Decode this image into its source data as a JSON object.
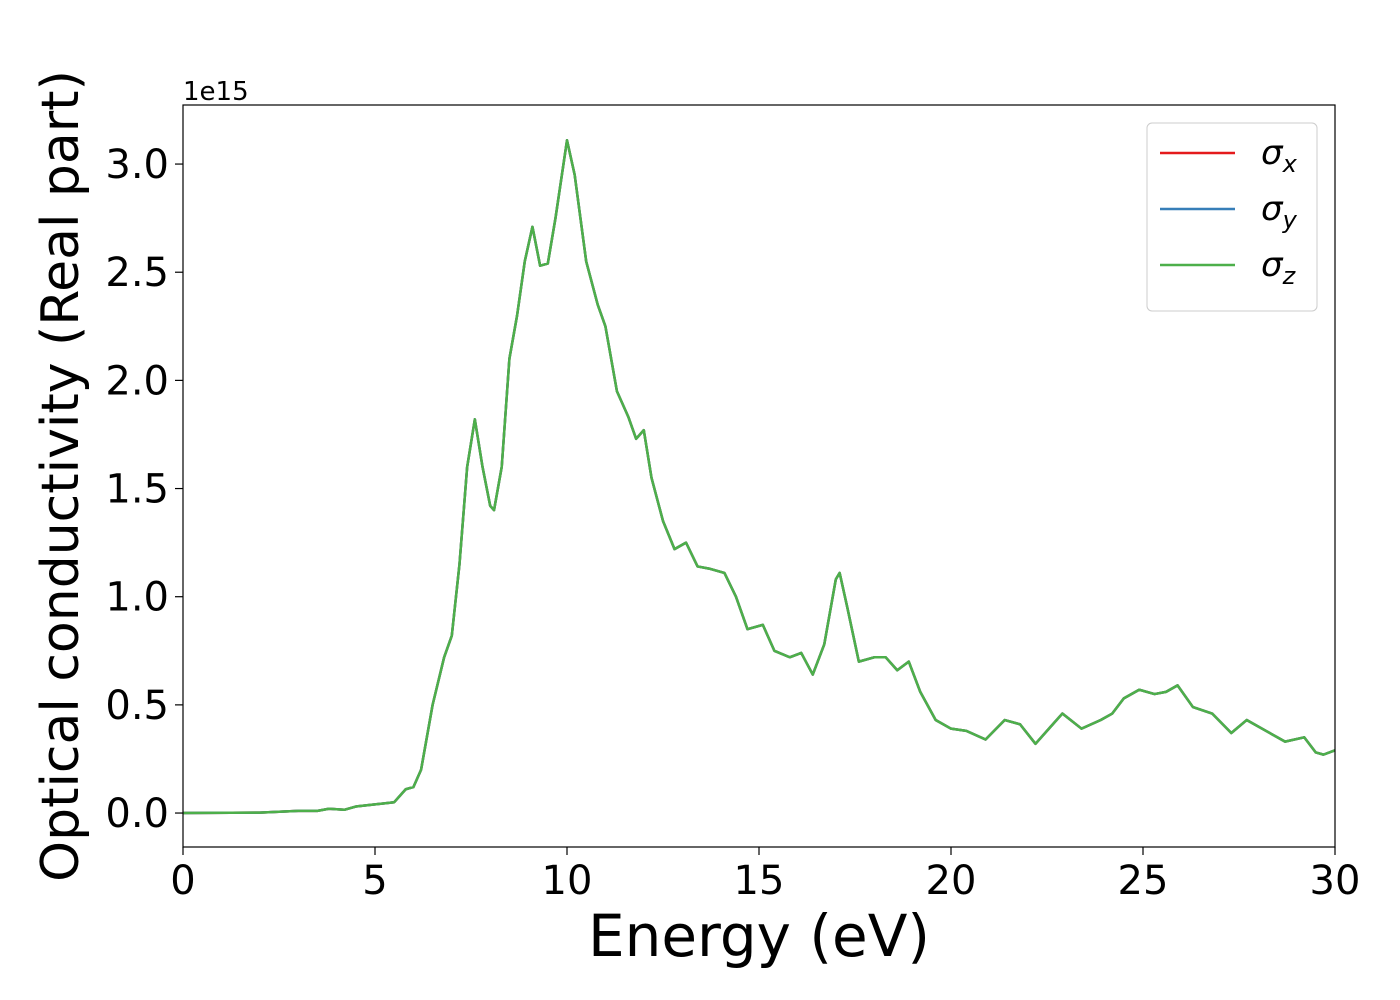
{
  "chart_data": {
    "type": "line",
    "xlabel": "Energy (eV)",
    "ylabel": "Optical conductivity (Real part)",
    "y_offset_label": "1e15",
    "legend": "upper right",
    "xlim": [
      0,
      30
    ],
    "xticks": [
      0,
      5,
      10,
      15,
      20,
      25,
      30
    ],
    "ylim": [
      -0.157,
      3.273
    ],
    "yticks": [
      {
        "value": 0,
        "label": "0.0"
      },
      {
        "value": 0.5,
        "label": "0.5"
      },
      {
        "value": 1,
        "label": "1.0"
      },
      {
        "value": 1.5,
        "label": "1.5"
      },
      {
        "value": 2,
        "label": "2.0"
      },
      {
        "value": 2.5,
        "label": "2.5"
      },
      {
        "value": 3,
        "label": "3.0"
      }
    ],
    "x": [
      0,
      2,
      3,
      3.5,
      3.8,
      4.2,
      4.5,
      5,
      5.5,
      5.8,
      6,
      6.2,
      6.5,
      6.8,
      7,
      7.2,
      7.4,
      7.6,
      7.8,
      8,
      8.1,
      8.3,
      8.5,
      8.7,
      8.9,
      9.1,
      9.3,
      9.5,
      9.7,
      10,
      10.2,
      10.5,
      10.8,
      11,
      11.3,
      11.6,
      11.8,
      12,
      12.2,
      12.5,
      12.8,
      13.1,
      13.4,
      13.7,
      14.1,
      14.4,
      14.7,
      15.1,
      15.4,
      15.8,
      16.1,
      16.4,
      16.7,
      17,
      17.1,
      17.3,
      17.6,
      18,
      18.3,
      18.6,
      18.9,
      19.2,
      19.6,
      20,
      20.4,
      20.9,
      21.4,
      21.8,
      22.2,
      22.6,
      22.9,
      23.4,
      23.9,
      24.2,
      24.5,
      24.9,
      25.3,
      25.6,
      25.9,
      26.3,
      26.8,
      27.3,
      27.7,
      28.2,
      28.7,
      29.2,
      29.5,
      29.7,
      30
    ],
    "series": [
      {
        "name": "σx",
        "color": "#e41a1c",
        "values": [
          0,
          0.002,
          0.01,
          0.01,
          0.02,
          0.015,
          0.03,
          0.04,
          0.05,
          0.11,
          0.12,
          0.2,
          0.5,
          0.72,
          0.82,
          1.15,
          1.6,
          1.82,
          1.6,
          1.42,
          1.4,
          1.6,
          2.1,
          2.3,
          2.55,
          2.71,
          2.53,
          2.54,
          2.75,
          3.11,
          2.95,
          2.55,
          2.35,
          2.25,
          1.95,
          1.83,
          1.73,
          1.77,
          1.55,
          1.35,
          1.22,
          1.25,
          1.14,
          1.13,
          1.11,
          1,
          0.85,
          0.87,
          0.75,
          0.72,
          0.74,
          0.64,
          0.78,
          1.08,
          1.11,
          0.95,
          0.7,
          0.72,
          0.72,
          0.66,
          0.7,
          0.56,
          0.43,
          0.39,
          0.38,
          0.34,
          0.43,
          0.41,
          0.32,
          0.4,
          0.46,
          0.39,
          0.43,
          0.46,
          0.53,
          0.57,
          0.55,
          0.56,
          0.59,
          0.49,
          0.46,
          0.37,
          0.43,
          0.38,
          0.33,
          0.35,
          0.28,
          0.27,
          0.29
        ]
      },
      {
        "name": "σy",
        "color": "#377eb8",
        "values": [
          0,
          0.002,
          0.01,
          0.01,
          0.02,
          0.015,
          0.03,
          0.04,
          0.05,
          0.11,
          0.12,
          0.2,
          0.5,
          0.72,
          0.82,
          1.15,
          1.6,
          1.82,
          1.6,
          1.42,
          1.4,
          1.6,
          2.1,
          2.3,
          2.55,
          2.71,
          2.53,
          2.54,
          2.75,
          3.11,
          2.95,
          2.55,
          2.35,
          2.25,
          1.95,
          1.83,
          1.73,
          1.77,
          1.55,
          1.35,
          1.22,
          1.25,
          1.14,
          1.13,
          1.11,
          1,
          0.85,
          0.87,
          0.75,
          0.72,
          0.74,
          0.64,
          0.78,
          1.08,
          1.11,
          0.95,
          0.7,
          0.72,
          0.72,
          0.66,
          0.7,
          0.56,
          0.43,
          0.39,
          0.38,
          0.34,
          0.43,
          0.41,
          0.32,
          0.4,
          0.46,
          0.39,
          0.43,
          0.46,
          0.53,
          0.57,
          0.55,
          0.56,
          0.59,
          0.49,
          0.46,
          0.37,
          0.43,
          0.38,
          0.33,
          0.35,
          0.28,
          0.27,
          0.29
        ]
      },
      {
        "name": "σz",
        "color": "#4daf4a",
        "values": [
          0,
          0.002,
          0.01,
          0.01,
          0.02,
          0.015,
          0.03,
          0.04,
          0.05,
          0.11,
          0.12,
          0.2,
          0.5,
          0.72,
          0.82,
          1.15,
          1.6,
          1.82,
          1.6,
          1.42,
          1.4,
          1.6,
          2.1,
          2.3,
          2.55,
          2.71,
          2.53,
          2.54,
          2.75,
          3.11,
          2.95,
          2.55,
          2.35,
          2.25,
          1.95,
          1.83,
          1.73,
          1.77,
          1.55,
          1.35,
          1.22,
          1.25,
          1.14,
          1.13,
          1.11,
          1,
          0.85,
          0.87,
          0.75,
          0.72,
          0.74,
          0.64,
          0.78,
          1.08,
          1.11,
          0.95,
          0.7,
          0.72,
          0.72,
          0.66,
          0.7,
          0.56,
          0.43,
          0.39,
          0.38,
          0.34,
          0.43,
          0.41,
          0.32,
          0.4,
          0.46,
          0.39,
          0.43,
          0.46,
          0.53,
          0.57,
          0.55,
          0.56,
          0.59,
          0.49,
          0.46,
          0.37,
          0.43,
          0.38,
          0.33,
          0.35,
          0.28,
          0.27,
          0.29
        ]
      }
    ]
  }
}
